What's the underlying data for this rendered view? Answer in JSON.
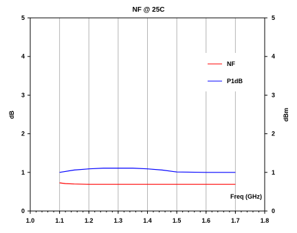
{
  "chart_data": {
    "type": "line",
    "title": "NF @ 25C",
    "xlabel": "Freq (GHz)",
    "ylabel": "dB",
    "y2label": "dBm",
    "xlim": [
      1.0,
      1.8
    ],
    "ylim": [
      0,
      5
    ],
    "y2lim": [
      0,
      5
    ],
    "x_ticks": [
      "1.0",
      "1.1",
      "1.2",
      "1.3",
      "1.4",
      "1.5",
      "1.6",
      "1.7",
      "1.8"
    ],
    "y_ticks": [
      "0",
      "1",
      "2",
      "3",
      "4",
      "5"
    ],
    "y2_ticks": [
      "0",
      "1",
      "2",
      "3",
      "4",
      "5"
    ],
    "grid": "vertical",
    "legend_position": "top-right",
    "series": [
      {
        "name": "NF",
        "color": "#ff0000",
        "x": [
          1.1,
          1.12,
          1.15,
          1.2,
          1.3,
          1.4,
          1.5,
          1.6,
          1.7
        ],
        "values": [
          0.73,
          0.71,
          0.7,
          0.69,
          0.69,
          0.69,
          0.69,
          0.69,
          0.69
        ]
      },
      {
        "name": "P1dB",
        "color": "#0000ff",
        "x": [
          1.1,
          1.15,
          1.2,
          1.25,
          1.3,
          1.35,
          1.4,
          1.45,
          1.5,
          1.6,
          1.7
        ],
        "values": [
          1.0,
          1.06,
          1.09,
          1.11,
          1.11,
          1.11,
          1.09,
          1.06,
          1.01,
          1.0,
          1.0
        ]
      }
    ]
  }
}
